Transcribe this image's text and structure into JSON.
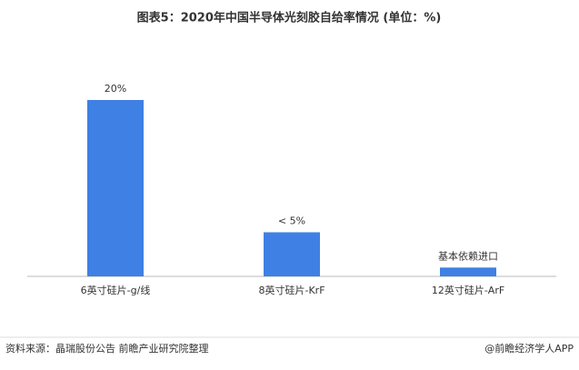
{
  "chart_data": {
    "type": "bar",
    "title": "图表5：2020年中国半导体光刻胶自给率情况 (单位：%)",
    "categories": [
      "6英寸硅片-g/线",
      "8英寸硅片-KrF",
      "12英寸硅片-ArF"
    ],
    "values": [
      20,
      5,
      1
    ],
    "value_labels": [
      "20%",
      "< 5%",
      "基本依赖进口"
    ],
    "color": "#3f80e4",
    "ylim": [
      0,
      20
    ],
    "source": "资料来源：晶瑞股份公告 前瞻产业研究院整理",
    "credit": "@前瞻经济学人APP"
  }
}
